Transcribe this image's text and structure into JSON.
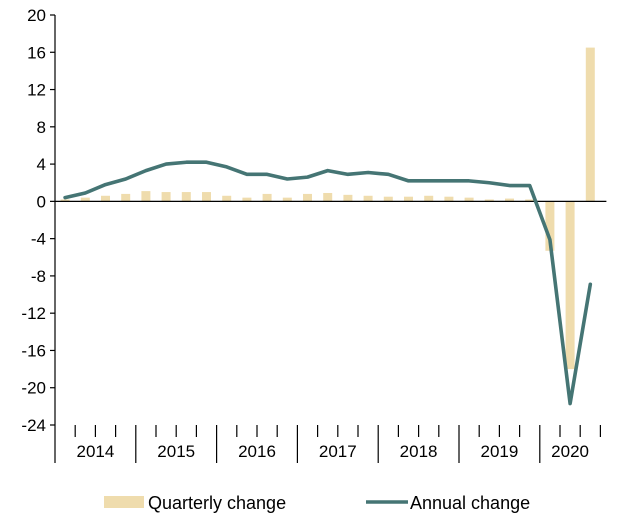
{
  "chart_data": {
    "type": "bar+line",
    "title": "",
    "xlabel": "",
    "ylabel": "",
    "ylim": [
      -24,
      20
    ],
    "yticks": [
      20,
      16,
      12,
      8,
      4,
      0,
      -4,
      -8,
      -12,
      -16,
      -20,
      -24
    ],
    "ytick_labels": [
      "20",
      "16",
      "12",
      "8",
      "4",
      "0",
      "-4",
      "-8",
      "-12",
      "-16",
      "-20",
      "-24"
    ],
    "years": [
      "2014",
      "2015",
      "2016",
      "2017",
      "2018",
      "2019",
      "2020"
    ],
    "quarters_per_year": [
      4,
      4,
      4,
      4,
      4,
      4,
      3
    ],
    "quarters": [
      "2014Q1",
      "2014Q2",
      "2014Q3",
      "2014Q4",
      "2015Q1",
      "2015Q2",
      "2015Q3",
      "2015Q4",
      "2016Q1",
      "2016Q2",
      "2016Q3",
      "2016Q4",
      "2017Q1",
      "2017Q2",
      "2017Q3",
      "2017Q4",
      "2018Q1",
      "2018Q2",
      "2018Q3",
      "2018Q4",
      "2019Q1",
      "2019Q2",
      "2019Q3",
      "2019Q4",
      "2020Q1",
      "2020Q2",
      "2020Q3"
    ],
    "series": [
      {
        "name": "Quarterly change",
        "kind": "bar",
        "color": "#efdcad",
        "values": [
          0.2,
          0.4,
          0.6,
          0.8,
          1.1,
          1.0,
          1.0,
          1.0,
          0.6,
          0.4,
          0.8,
          0.4,
          0.8,
          0.9,
          0.7,
          0.6,
          0.5,
          0.5,
          0.6,
          0.5,
          0.4,
          0.2,
          0.3,
          0.2,
          -5.3,
          -18.0,
          16.5
        ]
      },
      {
        "name": "Annual change",
        "kind": "line",
        "color": "#457574",
        "values": [
          0.4,
          0.9,
          1.8,
          2.4,
          3.3,
          4.0,
          4.2,
          4.2,
          3.7,
          2.9,
          2.9,
          2.4,
          2.6,
          3.3,
          2.9,
          3.1,
          2.9,
          2.2,
          2.2,
          2.2,
          2.2,
          2.0,
          1.7,
          1.7,
          -4.1,
          -21.7,
          -8.9
        ]
      }
    ],
    "legend": {
      "position": "bottom",
      "items": [
        {
          "label": "Quarterly change",
          "color": "#efdcad",
          "symbol": "bar"
        },
        {
          "label": "Annual change",
          "color": "#457574",
          "symbol": "line"
        }
      ]
    },
    "grid": false
  }
}
